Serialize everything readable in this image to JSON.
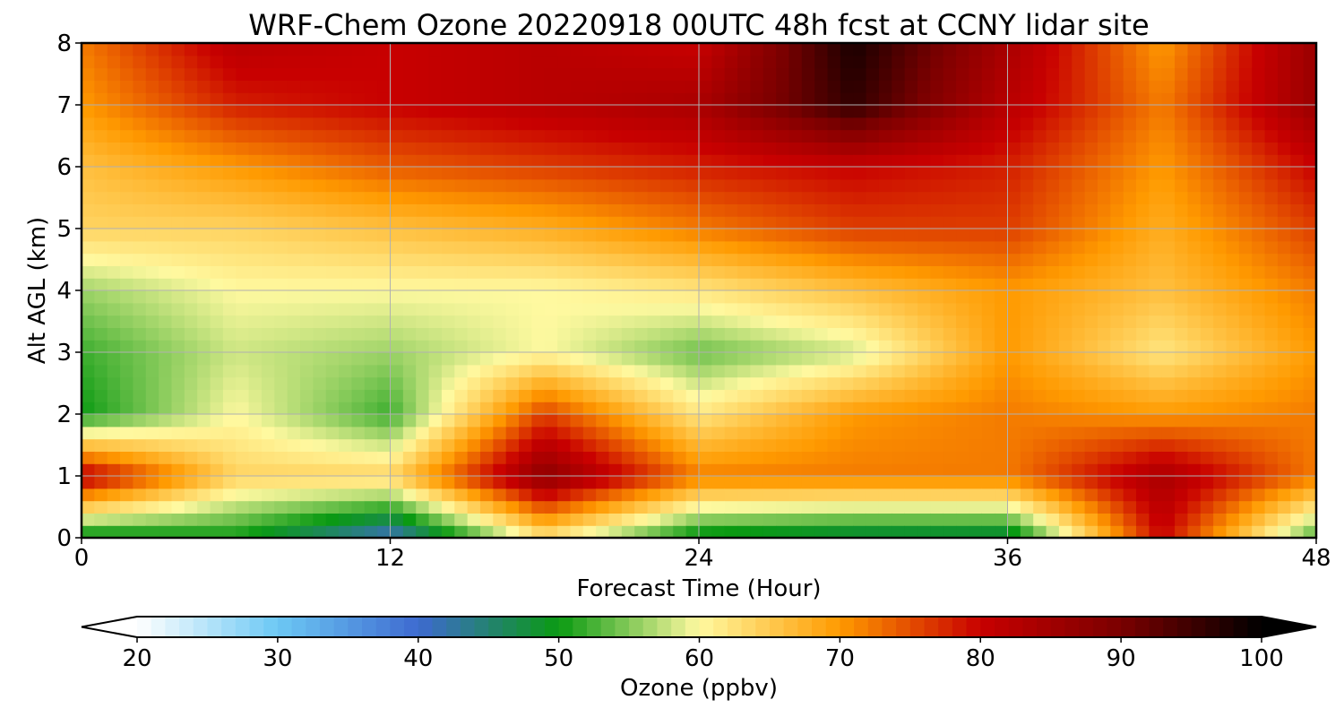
{
  "chart_data": {
    "type": "heatmap",
    "title": "WRF-Chem Ozone  20220918 00UTC 48h fcst at CCNY lidar site",
    "xlabel": "Forecast Time (Hour)",
    "ylabel": "Alt AGL (km)",
    "xlim": [
      0,
      48
    ],
    "ylim": [
      0,
      8
    ],
    "xticks": [
      0,
      12,
      24,
      36,
      48
    ],
    "yticks": [
      0,
      1,
      2,
      3,
      4,
      5,
      6,
      7,
      8
    ],
    "grid": true,
    "x": [
      0,
      6,
      12,
      18,
      24,
      30,
      36,
      42,
      48
    ],
    "y": [
      0,
      1,
      2,
      3,
      4,
      5,
      6,
      7,
      8
    ],
    "z": [
      [
        48,
        50,
        40,
        62,
        48,
        46,
        46,
        80,
        52
      ],
      [
        82,
        64,
        64,
        88,
        72,
        72,
        72,
        84,
        72
      ],
      [
        50,
        60,
        52,
        76,
        62,
        70,
        72,
        70,
        72
      ],
      [
        52,
        58,
        56,
        60,
        54,
        58,
        70,
        62,
        70
      ],
      [
        56,
        60,
        60,
        60,
        62,
        66,
        70,
        66,
        72
      ],
      [
        64,
        64,
        66,
        68,
        72,
        76,
        76,
        68,
        76
      ],
      [
        66,
        70,
        74,
        76,
        78,
        80,
        78,
        70,
        80
      ],
      [
        70,
        78,
        80,
        82,
        84,
        96,
        82,
        72,
        86
      ],
      [
        72,
        82,
        80,
        82,
        80,
        98,
        84,
        70,
        86
      ]
    ],
    "colorbar": {
      "label": "Ozone  (ppbv)",
      "min": 20,
      "max": 100,
      "ticks": [
        20,
        30,
        40,
        50,
        60,
        70,
        80,
        90,
        100
      ],
      "extend": "both",
      "colors": [
        [
          20,
          "#ffffff"
        ],
        [
          30,
          "#6cc8f4"
        ],
        [
          40,
          "#3e6ad0"
        ],
        [
          50,
          "#0a9a12"
        ],
        [
          60,
          "#fff9a0"
        ],
        [
          70,
          "#ff9a00"
        ],
        [
          80,
          "#c80000"
        ],
        [
          90,
          "#7a0000"
        ],
        [
          100,
          "#000000"
        ]
      ]
    }
  }
}
